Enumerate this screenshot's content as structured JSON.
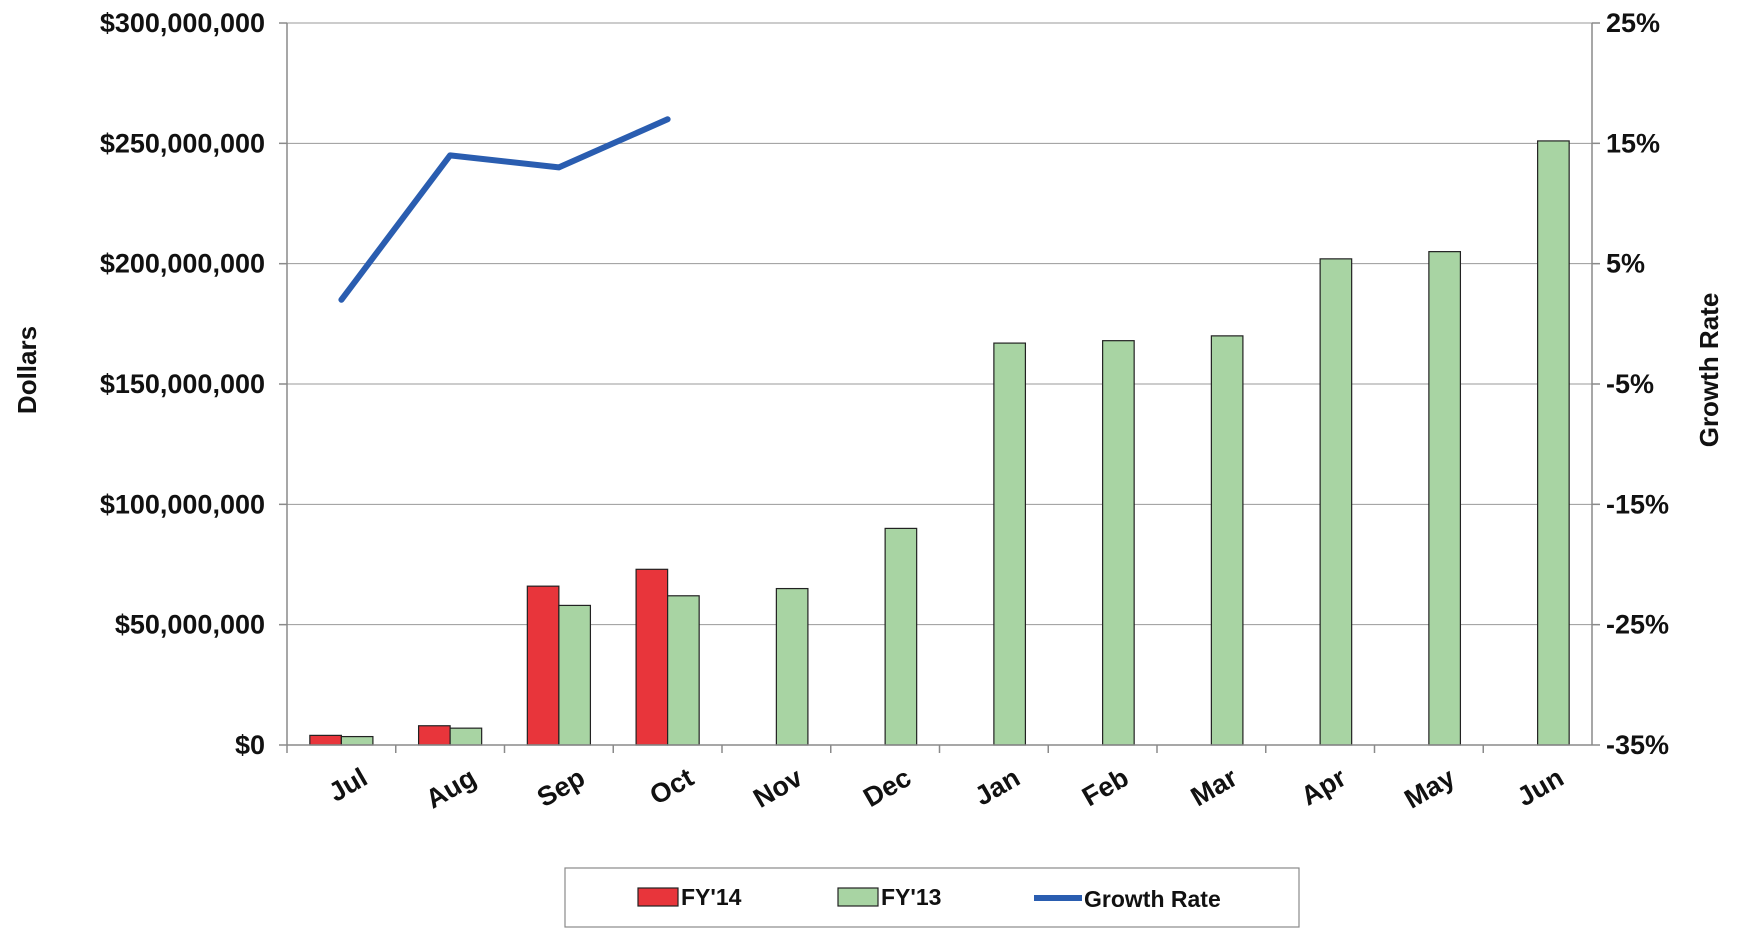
{
  "chart_data": {
    "type": "bar",
    "categories": [
      "Jul",
      "Aug",
      "Sep",
      "Oct",
      "Nov",
      "Dec",
      "Jan",
      "Feb",
      "Mar",
      "Apr",
      "May",
      "Jun"
    ],
    "series": [
      {
        "name": "FY'14",
        "type": "bar",
        "axis": "left",
        "color": "#e8353b",
        "values": [
          4000000,
          8000000,
          66000000,
          73000000,
          null,
          null,
          null,
          null,
          null,
          null,
          null,
          null
        ]
      },
      {
        "name": "FY'13",
        "type": "bar",
        "axis": "left",
        "color": "#a8d4a3",
        "values": [
          3500000,
          7000000,
          58000000,
          62000000,
          65000000,
          90000000,
          167000000,
          168000000,
          170000000,
          202000000,
          205000000,
          251000000
        ]
      },
      {
        "name": "Growth Rate",
        "type": "line",
        "axis": "right",
        "color": "#2a5db0",
        "values": [
          2.0,
          14.0,
          13.0,
          17.0,
          null,
          null,
          null,
          null,
          null,
          null,
          null,
          null
        ]
      }
    ],
    "y_left": {
      "label": "Dollars",
      "min": 0,
      "max": 300000000,
      "ticks": [
        "$0",
        "$50,000,000",
        "$100,000,000",
        "$150,000,000",
        "$200,000,000",
        "$250,000,000",
        "$300,000,000"
      ]
    },
    "y_right": {
      "label": "Growth Rate",
      "min": -35,
      "max": 25,
      "ticks": [
        "-35%",
        "-25%",
        "-15%",
        "-5%",
        "5%",
        "15%",
        "25%"
      ]
    },
    "grid": true,
    "legend": {
      "position": "bottom",
      "entries": [
        "FY'14",
        "FY'13",
        "Growth Rate"
      ]
    }
  }
}
